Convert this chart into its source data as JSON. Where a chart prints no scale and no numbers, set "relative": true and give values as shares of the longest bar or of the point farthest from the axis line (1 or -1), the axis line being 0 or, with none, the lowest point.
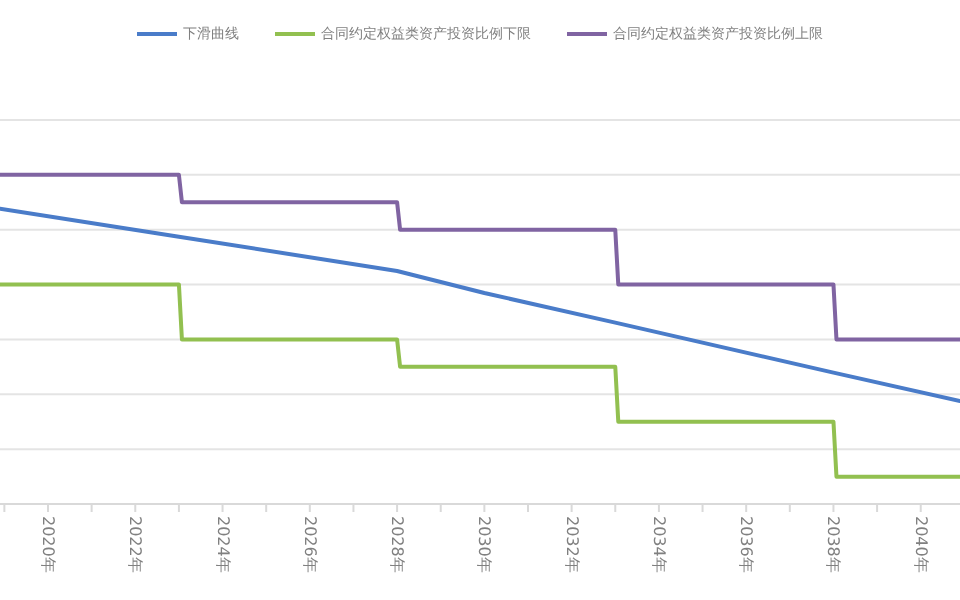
{
  "chart_data": {
    "type": "line",
    "relative": true,
    "legend": "top",
    "grid": "y",
    "xlim": [
      2018.9,
      2040.9
    ],
    "xticks": [
      {
        "value": 2019,
        "label": null
      },
      {
        "value": 2020,
        "label": "2020年"
      },
      {
        "value": 2021,
        "label": null
      },
      {
        "value": 2022,
        "label": "2022年"
      },
      {
        "value": 2023,
        "label": null
      },
      {
        "value": 2024,
        "label": "2024年"
      },
      {
        "value": 2025,
        "label": null
      },
      {
        "value": 2026,
        "label": "2026年"
      },
      {
        "value": 2027,
        "label": null
      },
      {
        "value": 2028,
        "label": "2028年"
      },
      {
        "value": 2029,
        "label": null
      },
      {
        "value": 2030,
        "label": "2030年"
      },
      {
        "value": 2031,
        "label": null
      },
      {
        "value": 2032,
        "label": "2032年"
      },
      {
        "value": 2033,
        "label": null
      },
      {
        "value": 2034,
        "label": "2034年"
      },
      {
        "value": 2035,
        "label": null
      },
      {
        "value": 2036,
        "label": "2036年"
      },
      {
        "value": 2037,
        "label": null
      },
      {
        "value": 2038,
        "label": "2038年"
      },
      {
        "value": 2039,
        "label": null
      },
      {
        "value": 2040,
        "label": "2040年"
      }
    ],
    "series": [
      {
        "name": "下滑曲线",
        "color": "#4a7cc9",
        "type": "line",
        "x": [
          2018.9,
          2023,
          2028,
          2030,
          2033,
          2038,
          2040.9
        ],
        "values": [
          0.897,
          0.812,
          0.708,
          0.641,
          0.551,
          0.399,
          0.313
        ]
      },
      {
        "name": "合同约定权益类资产投资比例下限",
        "color": "#92c050",
        "type": "step",
        "x": [
          2018.9,
          2023,
          2028,
          2033,
          2038,
          2040.9
        ],
        "values": [
          0.667,
          0.5,
          0.417,
          0.25,
          0.083,
          0.083
        ]
      },
      {
        "name": "合同约定权益类资产投资比例上限",
        "color": "#8064a2",
        "type": "step",
        "x": [
          2018.9,
          2023,
          2028,
          2033,
          2038,
          2040.9
        ],
        "values": [
          1,
          0.917,
          0.833,
          0.667,
          0.5,
          0.5
        ]
      }
    ]
  }
}
